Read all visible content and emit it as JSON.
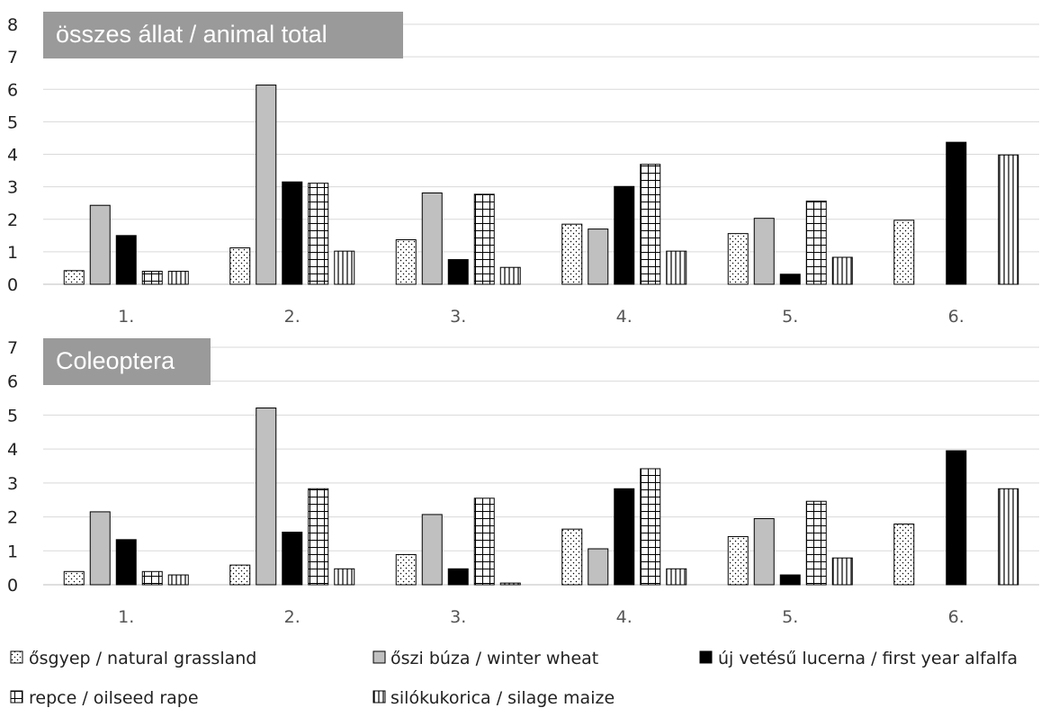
{
  "chart_data": [
    {
      "type": "bar",
      "title": "összes állat / animal total",
      "categories": [
        "1.",
        "2.",
        "3.",
        "4.",
        "5.",
        "6."
      ],
      "ylim": [
        0,
        8
      ],
      "yticks": [
        0,
        1,
        2,
        3,
        4,
        5,
        6,
        7,
        8
      ],
      "grid": true,
      "series": [
        {
          "name": "ősgyep / natural grassland",
          "values": [
            0.42,
            1.12,
            1.37,
            1.85,
            1.56,
            1.97
          ]
        },
        {
          "name": "őszi búza / winter wheat",
          "values": [
            2.43,
            6.13,
            2.81,
            1.7,
            2.03,
            0
          ]
        },
        {
          "name": "új vetésű lucerna / first year alfalfa",
          "values": [
            1.5,
            3.15,
            0.76,
            3.01,
            0.31,
            4.37
          ]
        },
        {
          "name": "repce / oilseed rape",
          "values": [
            0.4,
            3.11,
            2.77,
            3.69,
            2.56,
            0
          ]
        },
        {
          "name": "silókukorica / silage maize",
          "values": [
            0.4,
            1.02,
            0.52,
            1.02,
            0.83,
            3.98
          ]
        }
      ]
    },
    {
      "type": "bar",
      "title": "Coleoptera",
      "categories": [
        "1.",
        "2.",
        "3.",
        "4.",
        "5.",
        "6."
      ],
      "ylim": [
        0,
        7
      ],
      "yticks": [
        0,
        1,
        2,
        3,
        4,
        5,
        6,
        7
      ],
      "grid": true,
      "series": [
        {
          "name": "ősgyep / natural grassland",
          "values": [
            0.39,
            0.58,
            0.89,
            1.64,
            1.42,
            1.79
          ]
        },
        {
          "name": "őszi búza / winter wheat",
          "values": [
            2.15,
            5.21,
            2.07,
            1.06,
            1.95,
            0
          ]
        },
        {
          "name": "új vetésű lucerna / first year alfalfa",
          "values": [
            1.33,
            1.55,
            0.47,
            2.83,
            0.29,
            3.95
          ]
        },
        {
          "name": "repce / oilseed rape",
          "values": [
            0.39,
            2.83,
            2.55,
            3.42,
            2.46,
            0
          ]
        },
        {
          "name": "silókukorica / silage maize",
          "values": [
            0.29,
            0.47,
            0.05,
            0.47,
            0.79,
            2.83
          ]
        }
      ]
    }
  ],
  "legend": [
    {
      "label": "ősgyep / natural grassland",
      "pattern": "dots"
    },
    {
      "label": "őszi búza / winter wheat",
      "pattern": "gray"
    },
    {
      "label": "új vetésű lucerna / first year alfalfa",
      "pattern": "black"
    },
    {
      "label": "repce / oilseed rape",
      "pattern": "grid"
    },
    {
      "label": "silókukorica / silage maize",
      "pattern": "vlines"
    }
  ],
  "colors": {
    "gray_fill": "#c0c0c0",
    "black_fill": "#000000",
    "title_box": "#9a9a9a",
    "gridline": "#d9d9d9"
  }
}
